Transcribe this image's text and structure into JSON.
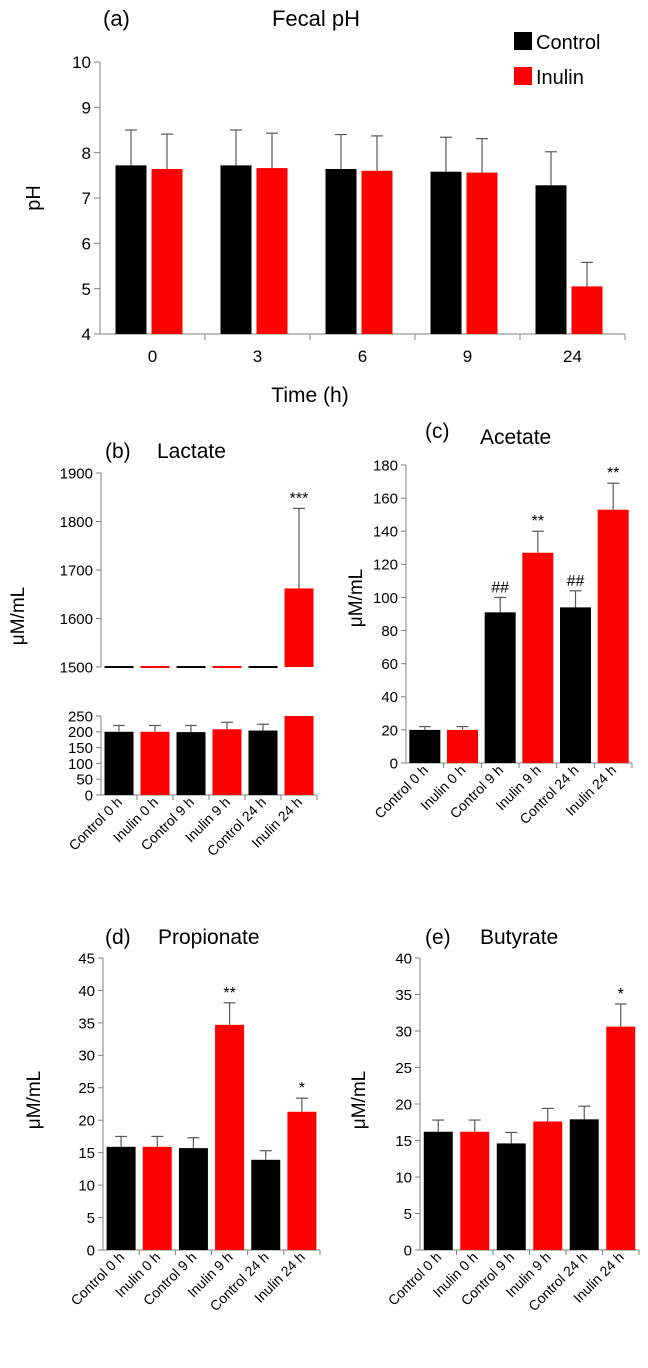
{
  "colors": {
    "control": "#000000",
    "inulin": "#ff0000",
    "axis": "#808080",
    "error": "#595959"
  },
  "chart_data": [
    {
      "id": "a",
      "type": "bar",
      "panel_label": "(a)",
      "title": "Fecal pH",
      "xlabel": "Time (h)",
      "ylabel": "pH",
      "categories": [
        "0",
        "3",
        "6",
        "9",
        "24"
      ],
      "ylim": [
        4,
        10
      ],
      "yticks": [
        "4",
        "5",
        "6",
        "7",
        "8",
        "9",
        "10"
      ],
      "legend": {
        "position": "top-right",
        "entries": [
          "Control",
          "Inulin"
        ]
      },
      "series": [
        {
          "name": "Control",
          "values": [
            7.72,
            7.72,
            7.64,
            7.58,
            7.28
          ],
          "errors": [
            0.78,
            0.78,
            0.76,
            0.76,
            0.74
          ]
        },
        {
          "name": "Inulin",
          "values": [
            7.64,
            7.66,
            7.6,
            7.56,
            5.05
          ],
          "errors": [
            0.77,
            0.77,
            0.77,
            0.75,
            0.53
          ]
        }
      ]
    },
    {
      "id": "b",
      "type": "bar",
      "panel_label": "(b)",
      "title": "Lactate",
      "ylabel": "μM/mL",
      "axis_break": true,
      "upper_ylim": [
        1500,
        1900
      ],
      "upper_yticks": [
        "1500",
        "1600",
        "1700",
        "1800",
        "1900"
      ],
      "lower_ylim": [
        0,
        250
      ],
      "lower_yticks": [
        "0",
        "50",
        "100",
        "150",
        "200",
        "250"
      ],
      "categories": [
        "Control 0 h",
        "Inulin 0 h",
        "Control 9 h",
        "Inulin 9 h",
        "Control 24 h",
        "Inulin 24 h"
      ],
      "values": [
        200,
        200,
        199,
        208,
        204,
        1662
      ],
      "errors": [
        20,
        20,
        21,
        22,
        20,
        165
      ],
      "bar_colors": [
        "control",
        "inulin",
        "control",
        "inulin",
        "control",
        "inulin"
      ],
      "annotations": [
        "",
        "",
        "",
        "",
        "",
        "***"
      ]
    },
    {
      "id": "c",
      "type": "bar",
      "panel_label": "(c)",
      "title": "Acetate",
      "ylabel": "μM/mL",
      "ylim": [
        0,
        180
      ],
      "yticks": [
        "0",
        "20",
        "40",
        "60",
        "80",
        "100",
        "120",
        "140",
        "160",
        "180"
      ],
      "categories": [
        "Control 0 h",
        "Inulin 0 h",
        "Control 9 h",
        "Inulin 9 h",
        "Control 24 h",
        "Inulin 24 h"
      ],
      "values": [
        20,
        20,
        91,
        127,
        94,
        153
      ],
      "errors": [
        2,
        2,
        9,
        13,
        10,
        16
      ],
      "bar_colors": [
        "control",
        "inulin",
        "control",
        "inulin",
        "control",
        "inulin"
      ],
      "annotations": [
        "",
        "",
        "##",
        "**",
        "##",
        "**"
      ]
    },
    {
      "id": "d",
      "type": "bar",
      "panel_label": "(d)",
      "title": "Propionate",
      "ylabel": "μM/mL",
      "ylim": [
        0,
        45
      ],
      "yticks": [
        "0",
        "5",
        "10",
        "15",
        "20",
        "25",
        "30",
        "35",
        "40",
        "45"
      ],
      "categories": [
        "Control 0 h",
        "Inulin 0 h",
        "Control 9 h",
        "Inulin 9 h",
        "Control 24 h",
        "Inulin 24 h"
      ],
      "values": [
        15.9,
        15.9,
        15.7,
        34.7,
        13.9,
        21.3
      ],
      "errors": [
        1.6,
        1.6,
        1.6,
        3.4,
        1.4,
        2.1
      ],
      "bar_colors": [
        "control",
        "inulin",
        "control",
        "inulin",
        "control",
        "inulin"
      ],
      "annotations": [
        "",
        "",
        "",
        "**",
        "",
        "*"
      ]
    },
    {
      "id": "e",
      "type": "bar",
      "panel_label": "(e)",
      "title": "Butyrate",
      "ylabel": "μM/mL",
      "ylim": [
        0,
        40
      ],
      "yticks": [
        "0",
        "5",
        "10",
        "15",
        "20",
        "25",
        "30",
        "35",
        "40"
      ],
      "categories": [
        "Control 0 h",
        "Inulin 0 h",
        "Control 9 h",
        "Inulin 9 h",
        "Control 24 h",
        "Inulin 24 h"
      ],
      "values": [
        16.2,
        16.2,
        14.6,
        17.6,
        17.9,
        30.6
      ],
      "errors": [
        1.6,
        1.6,
        1.5,
        1.8,
        1.8,
        3.1
      ],
      "bar_colors": [
        "control",
        "inulin",
        "control",
        "inulin",
        "control",
        "inulin"
      ],
      "annotations": [
        "",
        "",
        "",
        "",
        "",
        "*"
      ]
    }
  ]
}
